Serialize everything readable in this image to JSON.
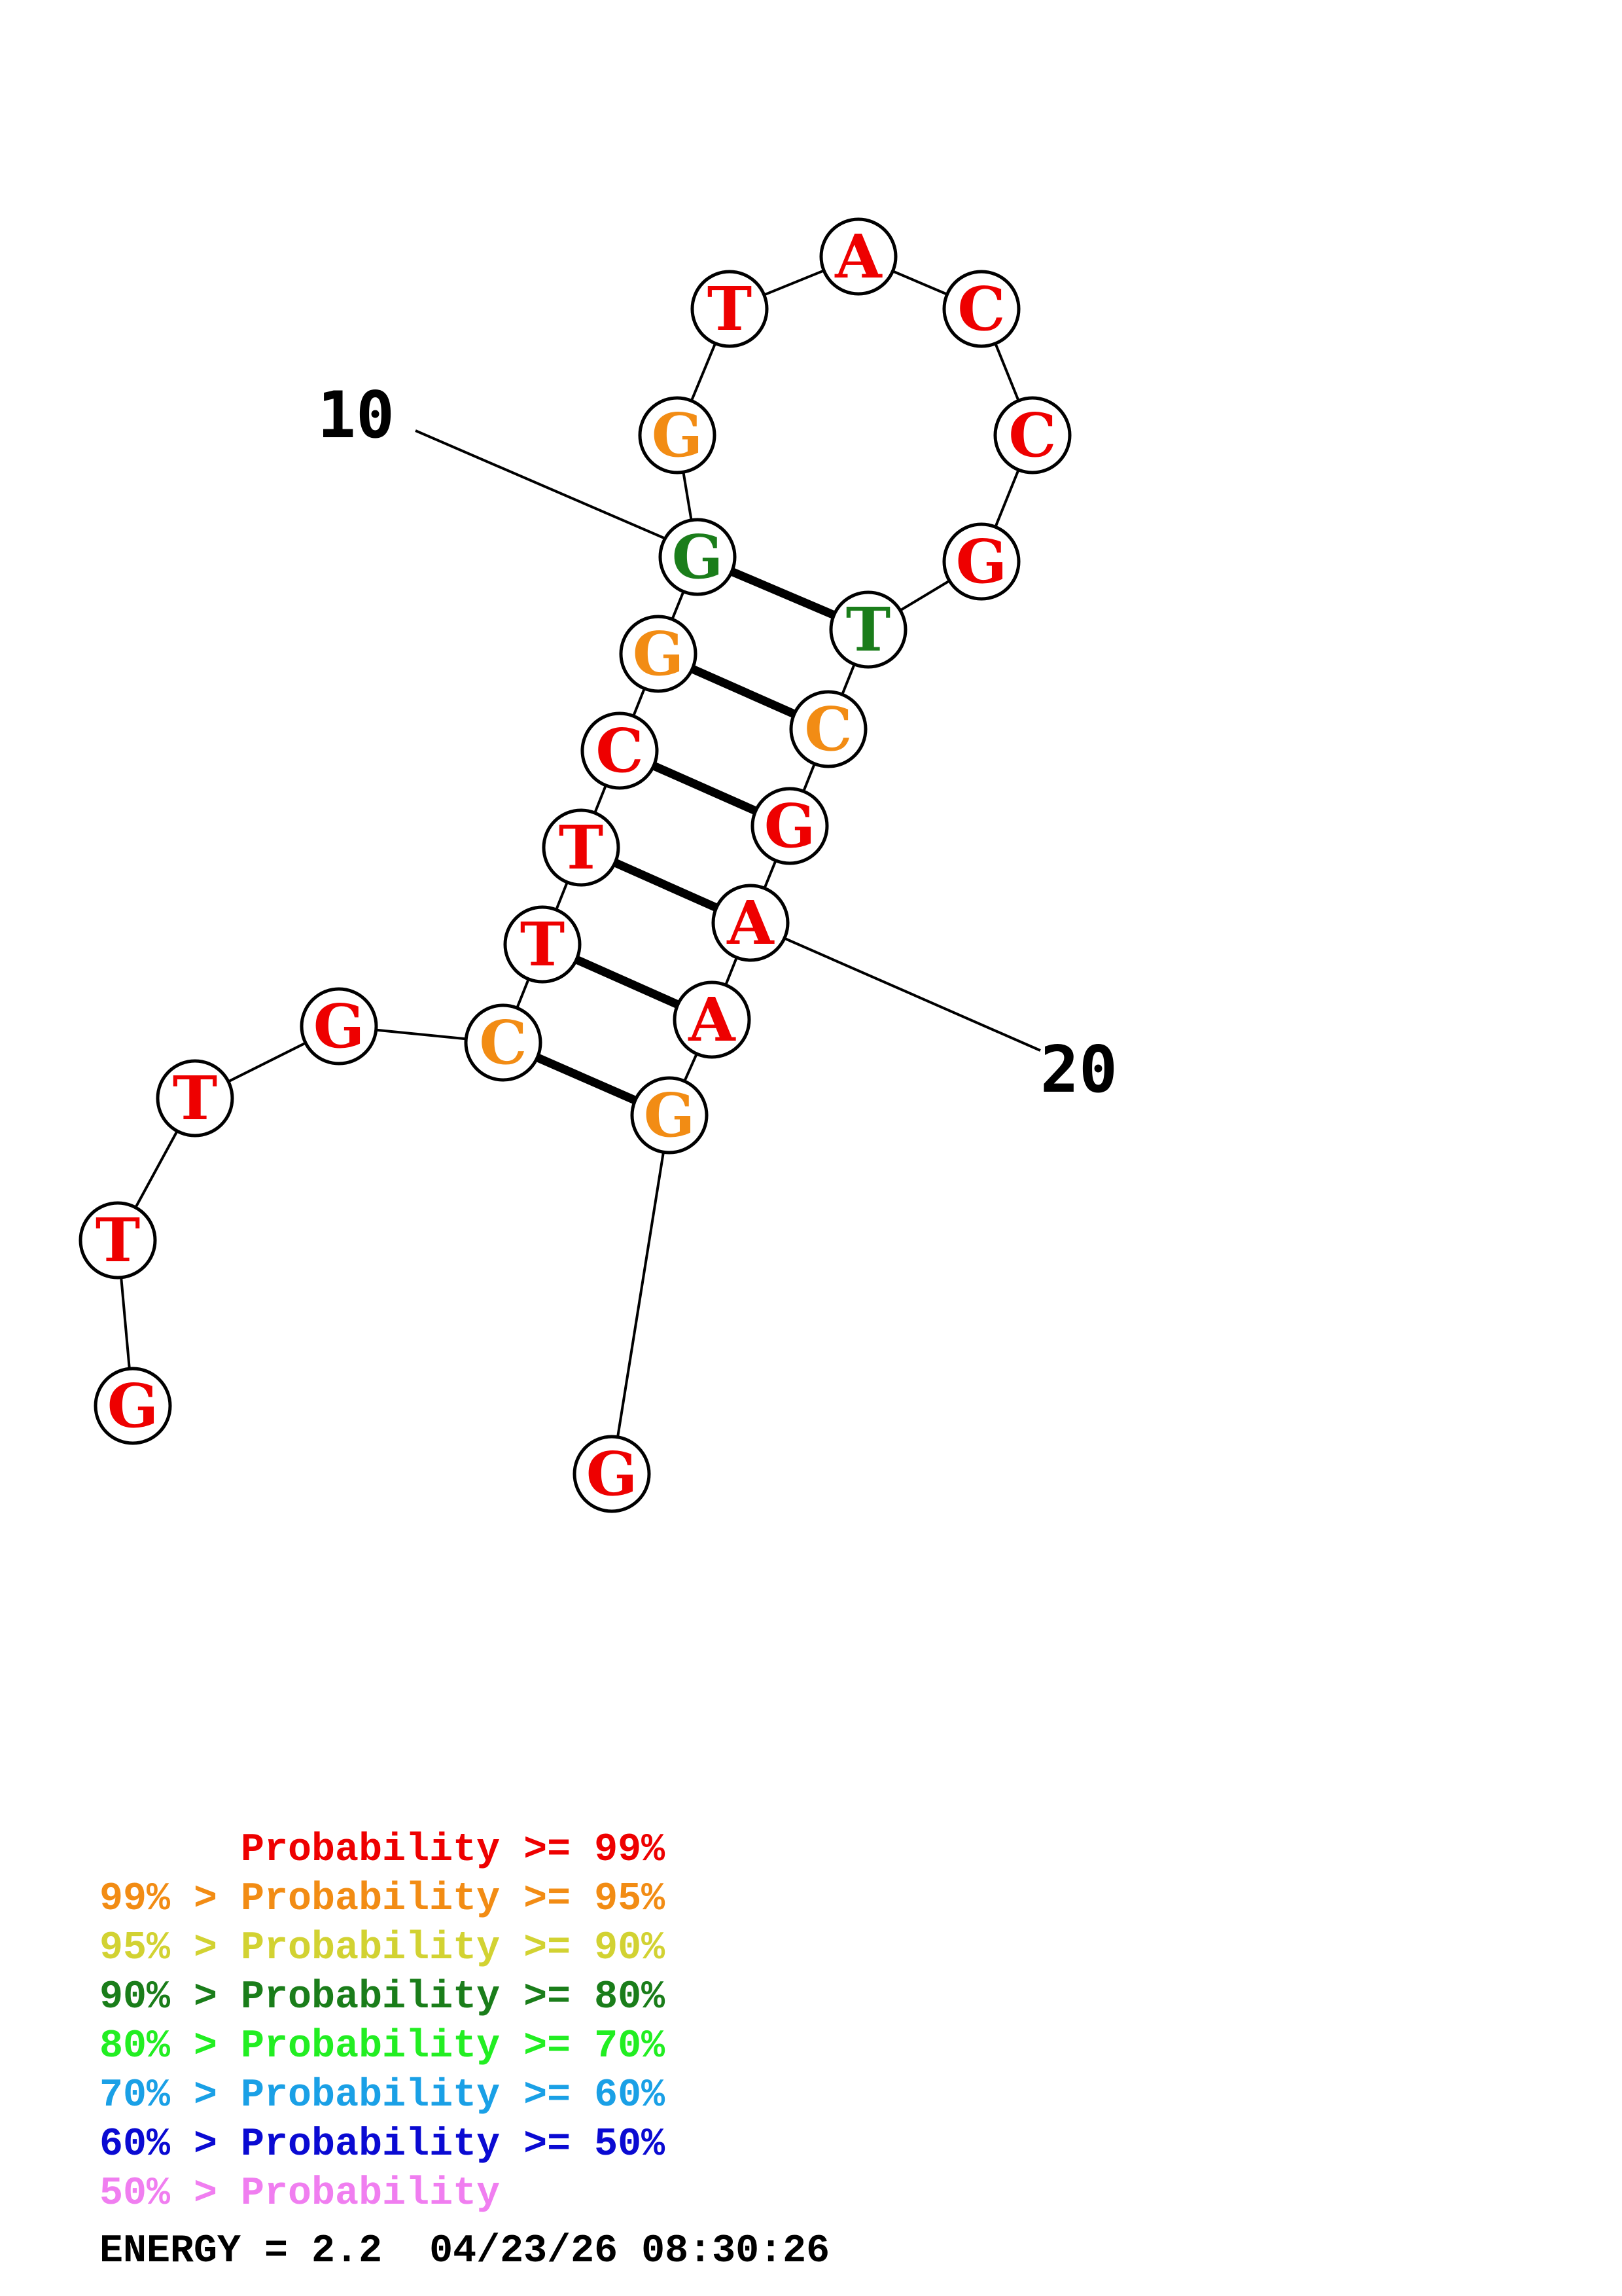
{
  "structure": {
    "nucleotides": [
      {
        "letter": "G",
        "color": "#ee0000"
      },
      {
        "letter": "T",
        "color": "#ee0000"
      },
      {
        "letter": "T",
        "color": "#ee0000"
      },
      {
        "letter": "G",
        "color": "#ee0000"
      },
      {
        "letter": "C",
        "color": "#f28c14"
      },
      {
        "letter": "T",
        "color": "#ee0000"
      },
      {
        "letter": "T",
        "color": "#ee0000"
      },
      {
        "letter": "C",
        "color": "#ee0000"
      },
      {
        "letter": "G",
        "color": "#f28c14"
      },
      {
        "letter": "G",
        "color": "#1a7d1a"
      },
      {
        "letter": "G",
        "color": "#f28c14"
      },
      {
        "letter": "T",
        "color": "#ee0000"
      },
      {
        "letter": "A",
        "color": "#ee0000"
      },
      {
        "letter": "C",
        "color": "#ee0000"
      },
      {
        "letter": "C",
        "color": "#ee0000"
      },
      {
        "letter": "G",
        "color": "#ee0000"
      },
      {
        "letter": "T",
        "color": "#1a7d1a"
      },
      {
        "letter": "C",
        "color": "#f28c14"
      },
      {
        "letter": "G",
        "color": "#ee0000"
      },
      {
        "letter": "A",
        "color": "#ee0000"
      },
      {
        "letter": "A",
        "color": "#ee0000"
      },
      {
        "letter": "G",
        "color": "#f28c14"
      },
      {
        "letter": "G",
        "color": "#ee0000"
      }
    ],
    "pairs": [
      [
        5,
        22
      ],
      [
        6,
        21
      ],
      [
        7,
        20
      ],
      [
        8,
        19
      ],
      [
        9,
        18
      ],
      [
        10,
        17
      ]
    ],
    "position_labels": [
      {
        "text": "10",
        "position": 10
      },
      {
        "text": "20",
        "position": 20
      }
    ]
  },
  "legend": [
    {
      "text": "      Probability >= 99%",
      "color": "#ee0000"
    },
    {
      "text": "99% > Probability >= 95%",
      "color": "#f28c14"
    },
    {
      "text": "95% > Probability >= 90%",
      "color": "#d2d232"
    },
    {
      "text": "90% > Probability >= 80%",
      "color": "#1a7d1a"
    },
    {
      "text": "80% > Probability >= 70%",
      "color": "#22ee22"
    },
    {
      "text": "70% > Probability >= 60%",
      "color": "#1aa0e6"
    },
    {
      "text": "60% > Probability >= 50%",
      "color": "#0a0ad2"
    },
    {
      "text": "50% > Probability",
      "color": "#f07ef0"
    }
  ],
  "footer": {
    "text": "ENERGY = 2.2  04/23/26 08:30:26"
  }
}
